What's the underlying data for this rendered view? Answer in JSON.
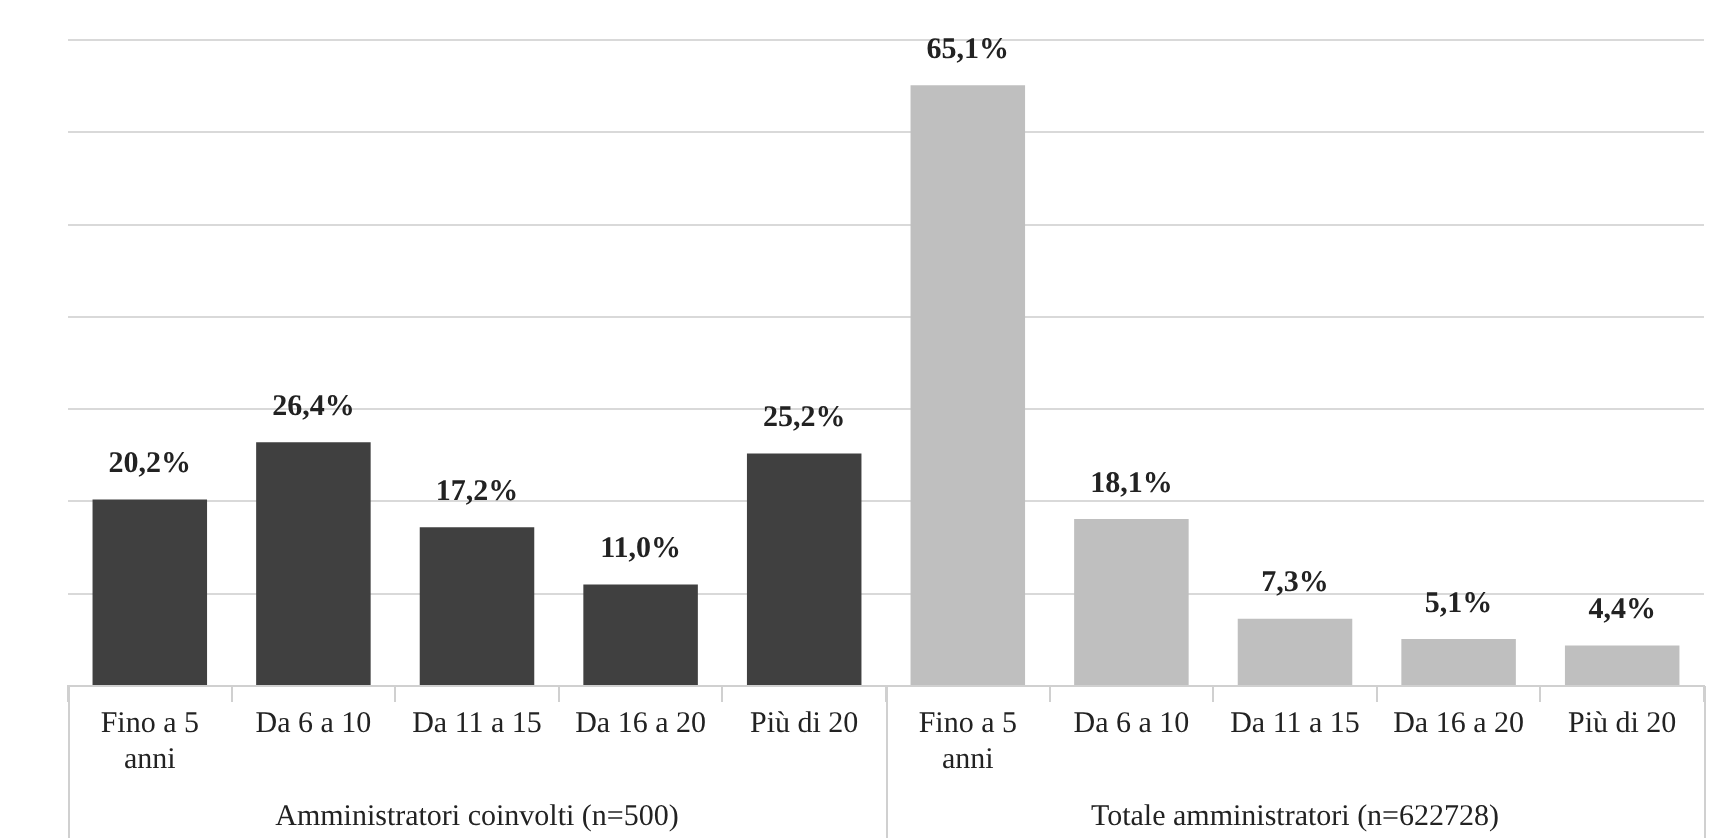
{
  "chart_data": {
    "type": "bar",
    "categories": [
      "Fino a 5 anni",
      "Da 6 a 10",
      "Da 11 a 15",
      "Da 16 a 20",
      "Più di 20",
      "Fino a 5 anni",
      "Da 6 a 10",
      "Da 11 a 15",
      "Da 16 a 20",
      "Più di 20"
    ],
    "values": [
      20.2,
      26.4,
      17.2,
      11.0,
      25.2,
      65.1,
      18.1,
      7.3,
      5.1,
      4.4
    ],
    "value_labels": [
      "20,2%",
      "26,4%",
      "17,2%",
      "11,0%",
      "25,2%",
      "65,1%",
      "18,1%",
      "7,3%",
      "5,1%",
      "4,4%"
    ],
    "colors": [
      "#404040",
      "#404040",
      "#404040",
      "#404040",
      "#404040",
      "#bfbfbf",
      "#bfbfbf",
      "#bfbfbf",
      "#bfbfbf",
      "#bfbfbf"
    ],
    "annotations": [
      "Amministratori coinvolti (n=500)",
      "Totale amministratori (n=622728)"
    ],
    "ylim": [
      0,
      70
    ],
    "yticks": [
      {
        "value": 0,
        "label": null
      },
      {
        "value": 10,
        "label": null
      },
      {
        "value": 20,
        "label": null
      },
      {
        "value": 30,
        "label": null
      },
      {
        "value": 40,
        "label": null
      },
      {
        "value": 50,
        "label": null
      },
      {
        "value": 60,
        "label": null
      },
      {
        "value": 70,
        "label": null
      }
    ],
    "tick_labels": "x",
    "grid": "y",
    "legend": false
  }
}
